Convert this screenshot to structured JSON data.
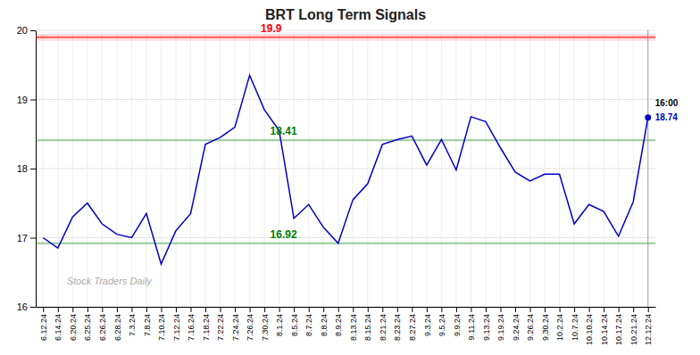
{
  "chart_data": {
    "type": "line",
    "title": "BRT Long Term Signals",
    "categories": [
      "6.12.24",
      "6.14.24",
      "6.20.24",
      "6.25.24",
      "6.26.24",
      "6.28.24",
      "7.3.24",
      "7.8.24",
      "7.10.24",
      "7.12.24",
      "7.16.24",
      "7.18.24",
      "7.22.24",
      "7.24.24",
      "7.26.24",
      "7.30.24",
      "8.1.24",
      "8.5.24",
      "8.7.24",
      "8.8.24",
      "8.9.24",
      "8.13.24",
      "8.15.24",
      "8.21.24",
      "8.23.24",
      "8.27.24",
      "9.3.24",
      "9.5.24",
      "9.9.24",
      "9.11.24",
      "9.13.24",
      "9.19.24",
      "9.24.24",
      "9.26.24",
      "9.30.24",
      "10.2.24",
      "10.7.24",
      "10.10.24",
      "10.14.24",
      "10.17.24",
      "10.21.24",
      "12.12.24"
    ],
    "values": [
      17.0,
      16.85,
      17.3,
      17.5,
      17.2,
      17.05,
      17.0,
      17.35,
      16.62,
      17.1,
      17.35,
      18.35,
      18.45,
      18.6,
      19.35,
      18.85,
      18.55,
      17.28,
      17.48,
      17.15,
      16.92,
      17.55,
      17.78,
      18.35,
      18.42,
      18.47,
      18.05,
      18.42,
      17.98,
      18.75,
      18.68,
      18.3,
      17.95,
      17.82,
      17.92,
      17.92,
      17.2,
      17.48,
      17.38,
      17.02,
      17.52,
      18.74
    ],
    "color": "#0000cc",
    "ylim": [
      16,
      20
    ],
    "yticks": [
      16,
      17,
      18,
      19,
      20
    ],
    "grid": true,
    "hlines": [
      {
        "value": 19.9,
        "label": "19.9",
        "color": "red"
      },
      {
        "value": 18.41,
        "label": "18.41",
        "color": "green"
      },
      {
        "value": 16.92,
        "label": "16.92",
        "color": "green"
      }
    ],
    "annotations": [
      {
        "text": "16:00"
      },
      {
        "text": "18.74"
      }
    ],
    "watermark": "Stock Traders Daily"
  }
}
